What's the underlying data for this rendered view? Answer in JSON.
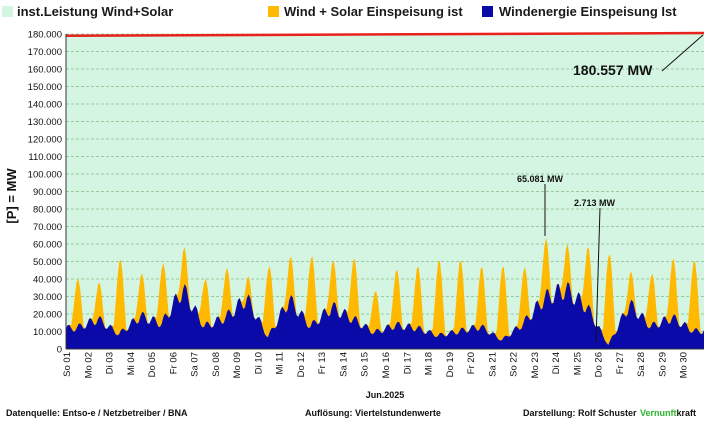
{
  "legend": [
    {
      "label": "inst.Leistung Wind+Solar",
      "color": "#d5f5e3"
    },
    {
      "label": "Wind + Solar Einspeisung ist",
      "color": "#ffb900"
    },
    {
      "label": "Windenergie Einspeisung Ist",
      "color": "#0a0aa8"
    }
  ],
  "ylabel": "[P] =  MW",
  "xlabel": "Jun.2025",
  "footer": {
    "source": "Datenquelle:  Entso-e  / Netzbetreiber / BNA",
    "resolution": "Auflösung: Viertelstundenwerte",
    "author": "Darstellung:  Rolf Schuster",
    "brand_green": "Vernunft",
    "brand_black": "kraft"
  },
  "annotations": {
    "installed": "180.557 MW",
    "peak": "65.081 MW",
    "min": "2.713 MW"
  },
  "chart_data": {
    "type": "area",
    "ylim": [
      0,
      180000
    ],
    "yticks": [
      "0",
      "10.000",
      "20.000",
      "30.000",
      "40.000",
      "50.000",
      "60.000",
      "70.000",
      "80.000",
      "90.000",
      "100.000",
      "110.000",
      "120.000",
      "130.000",
      "140.000",
      "150.000",
      "160.000",
      "170.000",
      "180.000"
    ],
    "days": [
      "So 01",
      "Mo 02",
      "Di 03",
      "Mi 04",
      "Do 05",
      "Fr 06",
      "Sa 07",
      "So 08",
      "Mo 09",
      "Di 10",
      "Mi 11",
      "Do 12",
      "Fr 13",
      "Sa 14",
      "So 15",
      "Mo 16",
      "Di 17",
      "Mi 18",
      "Do 19",
      "Fr 20",
      "Sa 21",
      "So 22",
      "Mo 23",
      "Di 24",
      "Mi 25",
      "Do 26",
      "Fr 27",
      "Sa 28",
      "So 29",
      "Mo 30"
    ],
    "day_labels_shown": [
      "So 01",
      "Mo 02",
      "Di 03",
      "Mi 04",
      "Do 05",
      "Fr 06",
      "Sa 07",
      "So 08",
      "Mo 09",
      "Di 10",
      "Mi 11",
      "Do 12",
      "Fr 13",
      "Sa 14",
      "So 15",
      "Mo 16",
      "Di 17",
      "Mi 18",
      "Do 19",
      "Fr 20",
      "Sa 21",
      "So 22",
      "Mo 23",
      "Di 24",
      "Mi 25",
      "Do 26",
      "Fr 27",
      "Sa 28",
      "So 29",
      "Mo 30"
    ],
    "series": [
      {
        "name": "inst.Leistung Wind+Solar",
        "start": 179000,
        "end": 180557,
        "color": "#e8221b"
      },
      {
        "name": "Wind + Solar Einspeisung ist",
        "color": "#ffb900",
        "daily_peak": [
          41000,
          40000,
          52000,
          45000,
          49000,
          62000,
          41000,
          47000,
          45000,
          47000,
          56000,
          54000,
          53000,
          54000,
          34000,
          47000,
          49000,
          52000,
          52000,
          49000,
          48000,
          47000,
          65081,
          63000,
          62000,
          54000,
          47000,
          44000,
          54000,
          52000
        ]
      },
      {
        "name": "Windenergie Einspeisung Ist",
        "color": "#0a0aa8",
        "daily_wind": [
          14000,
          20000,
          10000,
          22000,
          17000,
          40000,
          15000,
          21000,
          34000,
          8000,
          33000,
          15000,
          28000,
          20000,
          11000,
          16000,
          14000,
          9000,
          12000,
          15000,
          6000,
          17000,
          34000,
          40000,
          28000,
          2713,
          30000,
          15000,
          21000,
          12000
        ]
      }
    ]
  }
}
